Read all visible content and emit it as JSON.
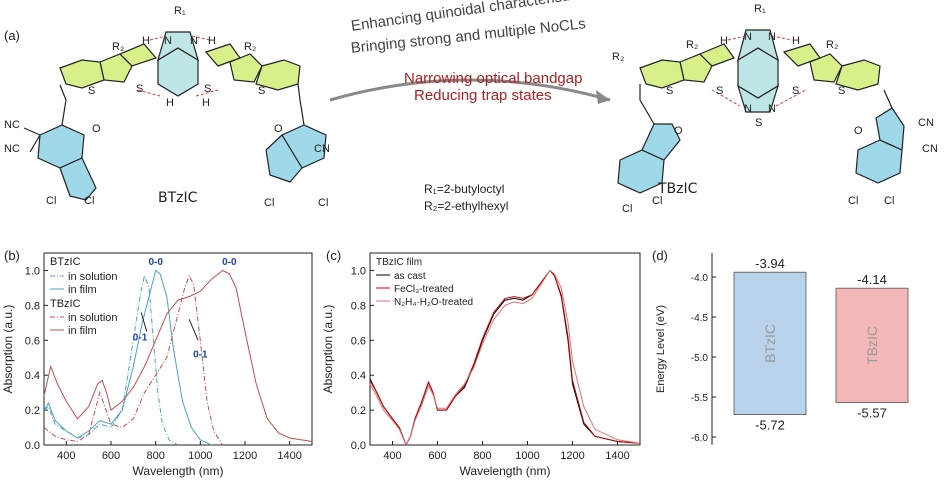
{
  "panel_a": {
    "label": "(a)",
    "left_molecule": "BTzIC",
    "right_molecule": "TBzIC",
    "arrow_top": [
      "Enhancing quinoidal characteristics",
      "Bringing strong and multiple NoCLs"
    ],
    "arrow_bottom": [
      "Narrowing optical bandgap",
      "Reducing trap states"
    ],
    "r1": "R₁=2-butyloctyl",
    "r2": "R₂=2-ethylhexyl",
    "atoms": {
      "R1": "R₁",
      "R2": "R₂",
      "N": "N",
      "H": "H",
      "S": "S",
      "O": "O",
      "NC": "NC",
      "CN": "CN",
      "Cl": "Cl"
    }
  },
  "panel_b": {
    "label": "(b)",
    "legend": {
      "btzic_title": "BTzIC",
      "btzic_sol": "in solution",
      "btzic_film": "in film",
      "tbzic_title": "TBzIC",
      "tbzic_sol": "in solution",
      "tbzic_film": "in film"
    },
    "ann": {
      "b00": "0-0",
      "b01": "0-1",
      "t00": "0-0",
      "t01": "0-1"
    },
    "xlabel": "Wavelength (nm)",
    "ylabel": "Absorption (a.u.)",
    "xticks": [
      "400",
      "600",
      "800",
      "1000",
      "1200",
      "1400"
    ],
    "yticks": [
      "0.0",
      "0.2",
      "0.4",
      "0.6",
      "0.8",
      "1.0"
    ],
    "colors": {
      "btzic": "#4aa3c7",
      "tbzic": "#c0504d",
      "annot": "#1f3fa8"
    }
  },
  "panel_c": {
    "label": "(c)",
    "legend": {
      "title": "TBzIC film",
      "l1": "as cast",
      "l2": "FeCl₃-treated",
      "l3": "N₂H₄·H₂O-treated"
    },
    "xlabel": "Wavelength (nm)",
    "ylabel": "Absorption (a.u.)",
    "xticks": [
      "400",
      "600",
      "800",
      "1000",
      "1200",
      "1400"
    ],
    "yticks": [
      "0.0",
      "0.2",
      "0.4",
      "0.6",
      "0.8",
      "1.0"
    ],
    "colors": {
      "c1": "#000000",
      "c2": "#c00000",
      "c3": "#e07070"
    }
  },
  "panel_d": {
    "label": "(d)",
    "ylabel": "Energy Level (eV)",
    "yticks": [
      "-4.0",
      "-4.5",
      "-5.0",
      "-5.5",
      "-6.0"
    ],
    "bars": [
      {
        "name": "BTzIC",
        "lumo": "-3.94",
        "homo": "-5.72",
        "color": "#b9d3ea"
      },
      {
        "name": "TBzIC",
        "lumo": "-4.14",
        "homo": "-5.57",
        "color": "#f4b8b8"
      }
    ]
  },
  "chart_data": [
    {
      "type": "line",
      "panel": "b",
      "xlabel": "Wavelength (nm)",
      "ylabel": "Absorption (a.u.)",
      "xlim": [
        300,
        1500
      ],
      "ylim": [
        0,
        1.1
      ],
      "series": [
        {
          "name": "BTzIC in solution",
          "x": [
            300,
            320,
            350,
            400,
            450,
            500,
            550,
            600,
            650,
            700,
            730,
            750,
            770,
            790,
            810,
            830,
            860,
            900
          ],
          "y": [
            0.2,
            0.22,
            0.12,
            0.08,
            0.04,
            0.06,
            0.12,
            0.1,
            0.2,
            0.6,
            0.85,
            0.97,
            0.9,
            0.6,
            0.3,
            0.12,
            0.03,
            0.0
          ]
        },
        {
          "name": "BTzIC in film",
          "x": [
            300,
            320,
            350,
            400,
            450,
            500,
            550,
            600,
            650,
            700,
            740,
            770,
            800,
            820,
            850,
            880,
            920,
            960,
            1000,
            1050
          ],
          "y": [
            0.2,
            0.24,
            0.14,
            0.08,
            0.04,
            0.08,
            0.14,
            0.12,
            0.2,
            0.45,
            0.7,
            0.85,
            1.0,
            0.98,
            0.85,
            0.55,
            0.25,
            0.1,
            0.03,
            0.0
          ]
        },
        {
          "name": "TBzIC in solution",
          "x": [
            300,
            350,
            400,
            450,
            500,
            550,
            600,
            650,
            700,
            750,
            800,
            850,
            900,
            930,
            950,
            970,
            1000,
            1030,
            1060,
            1100
          ],
          "y": [
            0.1,
            0.05,
            0.03,
            0.02,
            0.06,
            0.3,
            0.12,
            0.1,
            0.15,
            0.3,
            0.4,
            0.5,
            0.75,
            0.9,
            0.97,
            0.92,
            0.6,
            0.25,
            0.08,
            0.0
          ]
        },
        {
          "name": "TBzIC in film",
          "x": [
            300,
            330,
            360,
            400,
            450,
            500,
            540,
            560,
            580,
            600,
            650,
            700,
            750,
            800,
            850,
            900,
            950,
            1000,
            1050,
            1100,
            1130,
            1160,
            1200,
            1250,
            1300,
            1350,
            1400,
            1450,
            1500
          ],
          "y": [
            0.28,
            0.45,
            0.35,
            0.25,
            0.15,
            0.22,
            0.35,
            0.37,
            0.3,
            0.2,
            0.25,
            0.33,
            0.45,
            0.6,
            0.75,
            0.83,
            0.85,
            0.88,
            0.95,
            1.0,
            0.98,
            0.9,
            0.65,
            0.35,
            0.15,
            0.07,
            0.04,
            0.03,
            0.02
          ]
        }
      ]
    },
    {
      "type": "line",
      "panel": "c",
      "xlabel": "Wavelength (nm)",
      "ylabel": "Absorption (a.u.)",
      "xlim": [
        300,
        1500
      ],
      "ylim": [
        0,
        1.1
      ],
      "series": [
        {
          "name": "as cast",
          "x": [
            300,
            330,
            360,
            400,
            430,
            460,
            480,
            500,
            530,
            560,
            580,
            600,
            640,
            680,
            720,
            760,
            800,
            850,
            900,
            940,
            980,
            1020,
            1060,
            1100,
            1120,
            1150,
            1180,
            1200,
            1250,
            1300,
            1400,
            1500
          ],
          "y": [
            0.38,
            0.3,
            0.22,
            0.15,
            0.1,
            0.0,
            0.05,
            0.15,
            0.25,
            0.36,
            0.3,
            0.2,
            0.2,
            0.28,
            0.33,
            0.45,
            0.6,
            0.75,
            0.83,
            0.84,
            0.83,
            0.86,
            0.93,
            1.0,
            0.97,
            0.85,
            0.6,
            0.35,
            0.12,
            0.05,
            0.02,
            0.01
          ]
        },
        {
          "name": "FeCl₃-treated",
          "x": [
            300,
            330,
            360,
            400,
            430,
            460,
            480,
            500,
            530,
            560,
            580,
            600,
            640,
            680,
            720,
            760,
            800,
            850,
            900,
            940,
            980,
            1020,
            1060,
            1100,
            1120,
            1150,
            1180,
            1200,
            1250,
            1300,
            1400,
            1500
          ],
          "y": [
            0.37,
            0.3,
            0.22,
            0.15,
            0.1,
            0.0,
            0.05,
            0.15,
            0.25,
            0.36,
            0.3,
            0.2,
            0.2,
            0.28,
            0.34,
            0.46,
            0.61,
            0.76,
            0.84,
            0.85,
            0.84,
            0.86,
            0.93,
            1.0,
            0.97,
            0.86,
            0.62,
            0.37,
            0.13,
            0.05,
            0.02,
            0.01
          ]
        },
        {
          "name": "N₂H₄·H₂O-treated",
          "x": [
            300,
            330,
            360,
            400,
            430,
            460,
            480,
            500,
            530,
            560,
            580,
            600,
            640,
            680,
            720,
            760,
            800,
            850,
            900,
            940,
            980,
            1020,
            1060,
            1100,
            1120,
            1150,
            1180,
            1200,
            1250,
            1300,
            1400,
            1500
          ],
          "y": [
            0.35,
            0.28,
            0.2,
            0.14,
            0.09,
            0.0,
            0.05,
            0.14,
            0.23,
            0.34,
            0.29,
            0.21,
            0.21,
            0.29,
            0.35,
            0.44,
            0.58,
            0.72,
            0.8,
            0.82,
            0.81,
            0.84,
            0.92,
            1.0,
            0.98,
            0.9,
            0.7,
            0.48,
            0.22,
            0.09,
            0.03,
            0.01
          ]
        }
      ]
    },
    {
      "type": "bar",
      "panel": "d",
      "ylabel": "Energy Level (eV)",
      "ylim": [
        -6.1,
        -3.7
      ],
      "categories": [
        "BTzIC",
        "TBzIC"
      ],
      "lumo": [
        -3.94,
        -4.14
      ],
      "homo": [
        -5.72,
        -5.57
      ]
    }
  ]
}
